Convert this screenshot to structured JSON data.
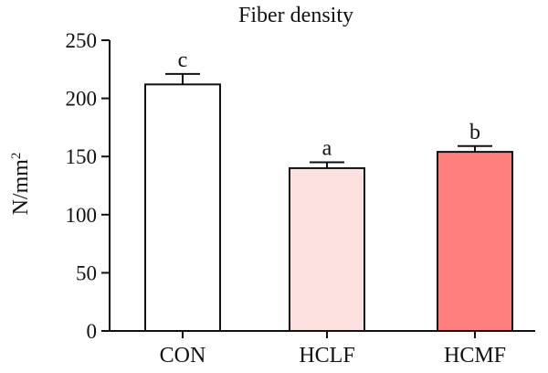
{
  "chart_data": {
    "type": "bar",
    "title": "Fiber density",
    "ylabel": "N/mm",
    "ylabel_superscript": "2",
    "xlabel": "",
    "ylim": [
      0,
      250
    ],
    "yticks": [
      "0",
      "50",
      "100",
      "150",
      "200",
      "250"
    ],
    "categories": [
      "CON",
      "HCLF",
      "HCMF"
    ],
    "values": [
      212,
      140,
      154
    ],
    "errors": [
      9,
      5,
      5
    ],
    "significance_labels": [
      "c",
      "a",
      "b"
    ],
    "bar_colors": [
      "#ffffff",
      "#fde0e0",
      "#ff7f7f"
    ],
    "stroke_color": "#111111",
    "grid": false,
    "legend": "none"
  }
}
